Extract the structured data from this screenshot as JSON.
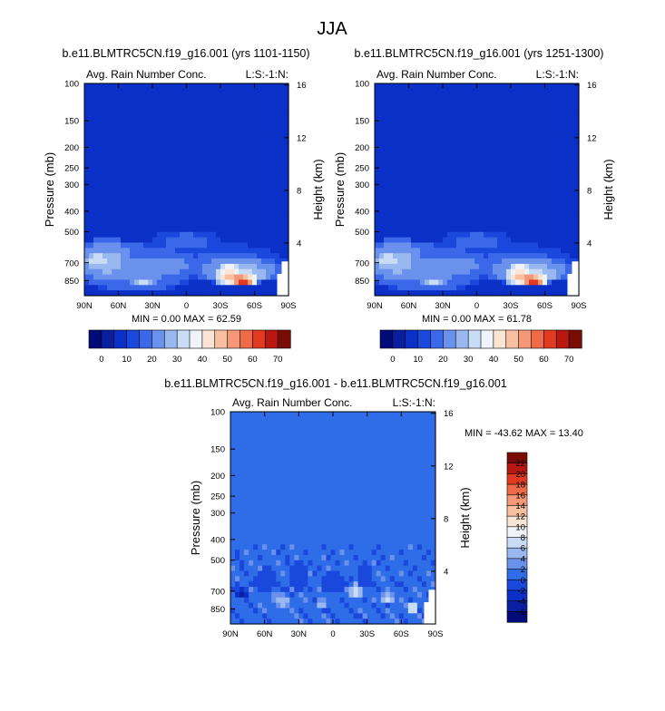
{
  "figure_title": "JJA",
  "colors": {
    "base_fill": "#0a30c8",
    "diff_fill": "#2e6ce8",
    "abs_scale": [
      "#000a78",
      "#0a1fa0",
      "#0a30c8",
      "#1a48dc",
      "#3a68e8",
      "#6a92ec",
      "#9ab8f0",
      "#c8dcf6",
      "#f0f4fa",
      "#fae4d4",
      "#f8c0a0",
      "#f49878",
      "#ee6a48",
      "#e03a20",
      "#b81810",
      "#7a0c06"
    ],
    "diff_scale": [
      "#000a78",
      "#0a1fa0",
      "#0a30c8",
      "#1a48dc",
      "#2e6ce8",
      "#6a92ec",
      "#9ab8f0",
      "#c8dcf6",
      "#f0f4fa",
      "#fae4d4",
      "#f8c0a0",
      "#f49878",
      "#ee6a48",
      "#e03a20",
      "#b81810",
      "#7a0c06"
    ]
  },
  "chart_data": [
    {
      "type": "heatmap",
      "title": "b.e11.BLMTRC5CN.f19_g16.001 (yrs 1101-1150)",
      "left_label": "Avg. Rain Number Conc.",
      "right_label": "L:S:-1:N:",
      "xlabel": "",
      "ylabel": "Pressure (mb)",
      "y2label": "Height (km)",
      "xlim": [
        -90,
        90
      ],
      "ylim": [
        100,
        1000
      ],
      "x_ticks": [
        -90,
        -60,
        -30,
        0,
        30,
        60,
        90
      ],
      "x_tick_labels": [
        "90N",
        "60N",
        "30N",
        "0",
        "30S",
        "60S",
        "90S"
      ],
      "y_ticks": [
        100,
        150,
        200,
        250,
        300,
        400,
        500,
        700,
        850
      ],
      "y_tick_labels": [
        "100",
        "150",
        "200",
        "250",
        "300",
        "400",
        "500",
        "700",
        "850"
      ],
      "y2_ticks": [
        4,
        8,
        12,
        16
      ],
      "y2_tick_labels": [
        "4",
        "8",
        "12",
        "16"
      ],
      "min_label": "MIN =",
      "min_value": "0.00",
      "max_label": "MAX =",
      "max_value": "62.59",
      "colorbar_labels": [
        "0",
        "10",
        "20",
        "30",
        "40",
        "50",
        "60",
        "70"
      ],
      "colorbar_levels": [
        0,
        5,
        10,
        15,
        20,
        25,
        30,
        35,
        40,
        45,
        50,
        55,
        60,
        65,
        70
      ],
      "field": {
        "background": 2,
        "blobs": [
          {
            "lat": -45,
            "p": 760,
            "lat_w": 55,
            "p_w": 200,
            "level": 5
          },
          {
            "lat": -15,
            "p": 720,
            "lat_w": 30,
            "p_w": 120,
            "level": 5
          },
          {
            "lat": -70,
            "p": 700,
            "lat_w": 30,
            "p_w": 170,
            "level": 6
          },
          {
            "lat": -78,
            "p": 680,
            "lat_w": 16,
            "p_w": 90,
            "level": 7
          },
          {
            "lat": 35,
            "p": 720,
            "lat_w": 55,
            "p_w": 150,
            "level": 4
          },
          {
            "lat": 45,
            "p": 760,
            "lat_w": 42,
            "p_w": 120,
            "level": 6
          },
          {
            "lat": 55,
            "p": 800,
            "lat_w": 22,
            "p_w": 80,
            "level": 7
          },
          {
            "lat": 0,
            "p": 560,
            "lat_w": 32,
            "p_w": 70,
            "level": 4
          },
          {
            "lat": -38,
            "p": 860,
            "lat_w": 14,
            "p_w": 55,
            "level": 7
          },
          {
            "lat": 38,
            "p": 780,
            "lat_w": 14,
            "p_w": 90,
            "level": 9
          },
          {
            "lat": 45,
            "p": 830,
            "lat_w": 20,
            "p_w": 70,
            "level": 11
          },
          {
            "lat": 50,
            "p": 860,
            "lat_w": 12,
            "p_w": 45,
            "level": 13
          }
        ]
      }
    },
    {
      "type": "heatmap",
      "title": "b.e11.BLMTRC5CN.f19_g16.001 (yrs 1251-1300)",
      "left_label": "Avg. Rain Number Conc.",
      "right_label": "L:S:-1:N:",
      "xlabel": "",
      "ylabel": "Pressure (mb)",
      "y2label": "Height (km)",
      "xlim": [
        -90,
        90
      ],
      "ylim": [
        100,
        1000
      ],
      "x_ticks": [
        -90,
        -60,
        -30,
        0,
        30,
        60,
        90
      ],
      "x_tick_labels": [
        "90N",
        "60N",
        "30N",
        "0",
        "30S",
        "60S",
        "90S"
      ],
      "y_ticks": [
        100,
        150,
        200,
        250,
        300,
        400,
        500,
        700,
        850
      ],
      "y_tick_labels": [
        "100",
        "150",
        "200",
        "250",
        "300",
        "400",
        "500",
        "700",
        "850"
      ],
      "y2_ticks": [
        4,
        8,
        12,
        16
      ],
      "y2_tick_labels": [
        "4",
        "8",
        "12",
        "16"
      ],
      "min_label": "MIN =",
      "min_value": "0.00",
      "max_label": "MAX =",
      "max_value": "61.78",
      "colorbar_labels": [
        "0",
        "10",
        "20",
        "30",
        "40",
        "50",
        "60",
        "70"
      ],
      "colorbar_levels": [
        0,
        5,
        10,
        15,
        20,
        25,
        30,
        35,
        40,
        45,
        50,
        55,
        60,
        65,
        70
      ],
      "field": {
        "background": 2,
        "blobs": [
          {
            "lat": -45,
            "p": 760,
            "lat_w": 55,
            "p_w": 200,
            "level": 5
          },
          {
            "lat": -15,
            "p": 720,
            "lat_w": 30,
            "p_w": 120,
            "level": 5
          },
          {
            "lat": -70,
            "p": 700,
            "lat_w": 30,
            "p_w": 170,
            "level": 6
          },
          {
            "lat": -78,
            "p": 680,
            "lat_w": 16,
            "p_w": 90,
            "level": 7
          },
          {
            "lat": 35,
            "p": 720,
            "lat_w": 55,
            "p_w": 150,
            "level": 4
          },
          {
            "lat": 45,
            "p": 760,
            "lat_w": 42,
            "p_w": 120,
            "level": 6
          },
          {
            "lat": 55,
            "p": 800,
            "lat_w": 22,
            "p_w": 80,
            "level": 7
          },
          {
            "lat": 0,
            "p": 560,
            "lat_w": 32,
            "p_w": 70,
            "level": 4
          },
          {
            "lat": -38,
            "p": 860,
            "lat_w": 14,
            "p_w": 55,
            "level": 7
          },
          {
            "lat": 38,
            "p": 780,
            "lat_w": 14,
            "p_w": 90,
            "level": 9
          },
          {
            "lat": 45,
            "p": 830,
            "lat_w": 20,
            "p_w": 70,
            "level": 11
          },
          {
            "lat": 50,
            "p": 860,
            "lat_w": 12,
            "p_w": 45,
            "level": 13
          }
        ]
      }
    },
    {
      "type": "heatmap",
      "title": "b.e11.BLMTRC5CN.f19_g16.001 - b.e11.BLMTRC5CN.f19_g16.001",
      "left_label": "Avg. Rain Number Conc.",
      "right_label": "L:S:-1:N:",
      "xlabel": "",
      "ylabel": "Pressure (mb)",
      "y2label": "Height (km)",
      "xlim": [
        -90,
        90
      ],
      "ylim": [
        100,
        1000
      ],
      "x_ticks": [
        -90,
        -60,
        -30,
        0,
        30,
        60,
        90
      ],
      "x_tick_labels": [
        "90N",
        "60N",
        "30N",
        "0",
        "30S",
        "60S",
        "90S"
      ],
      "y_ticks": [
        100,
        150,
        200,
        250,
        300,
        400,
        500,
        700,
        850
      ],
      "y_tick_labels": [
        "100",
        "150",
        "200",
        "250",
        "300",
        "400",
        "500",
        "700",
        "850"
      ],
      "y2_ticks": [
        4,
        8,
        12,
        16
      ],
      "y2_tick_labels": [
        "4",
        "8",
        "12",
        "16"
      ],
      "min_label": "MIN =",
      "min_value": "-43.62",
      "max_label": "MAX =",
      "max_value": "13.40",
      "colorbar_labels": [
        "22",
        "20",
        "18",
        "16",
        "14",
        "12",
        "10",
        "8",
        "6",
        "4",
        "2",
        "0",
        "-2",
        "-4",
        "-6"
      ],
      "colorbar_levels": [
        -8,
        -6,
        -4,
        -2,
        0,
        2,
        4,
        6,
        8,
        10,
        12,
        14,
        16,
        18,
        20,
        22
      ],
      "field": {
        "background": 4,
        "blobs": [
          {
            "lat": -80,
            "p": 720,
            "lat_w": 8,
            "p_w": 40,
            "level": 1
          },
          {
            "lat": -60,
            "p": 640,
            "lat_w": 10,
            "p_w": 90,
            "level": 3
          },
          {
            "lat": -30,
            "p": 600,
            "lat_w": 10,
            "p_w": 100,
            "level": 3
          },
          {
            "lat": 0,
            "p": 640,
            "lat_w": 12,
            "p_w": 90,
            "level": 3
          },
          {
            "lat": 28,
            "p": 600,
            "lat_w": 8,
            "p_w": 80,
            "level": 3
          },
          {
            "lat": 20,
            "p": 700,
            "lat_w": 6,
            "p_w": 60,
            "level": 7
          },
          {
            "lat": 48,
            "p": 760,
            "lat_w": 6,
            "p_w": 50,
            "level": 7
          },
          {
            "lat": 70,
            "p": 840,
            "lat_w": 6,
            "p_w": 40,
            "level": 8
          },
          {
            "lat": -45,
            "p": 780,
            "lat_w": 8,
            "p_w": 60,
            "level": 6
          },
          {
            "lat": -10,
            "p": 800,
            "lat_w": 6,
            "p_w": 50,
            "level": 6
          }
        ]
      }
    }
  ]
}
